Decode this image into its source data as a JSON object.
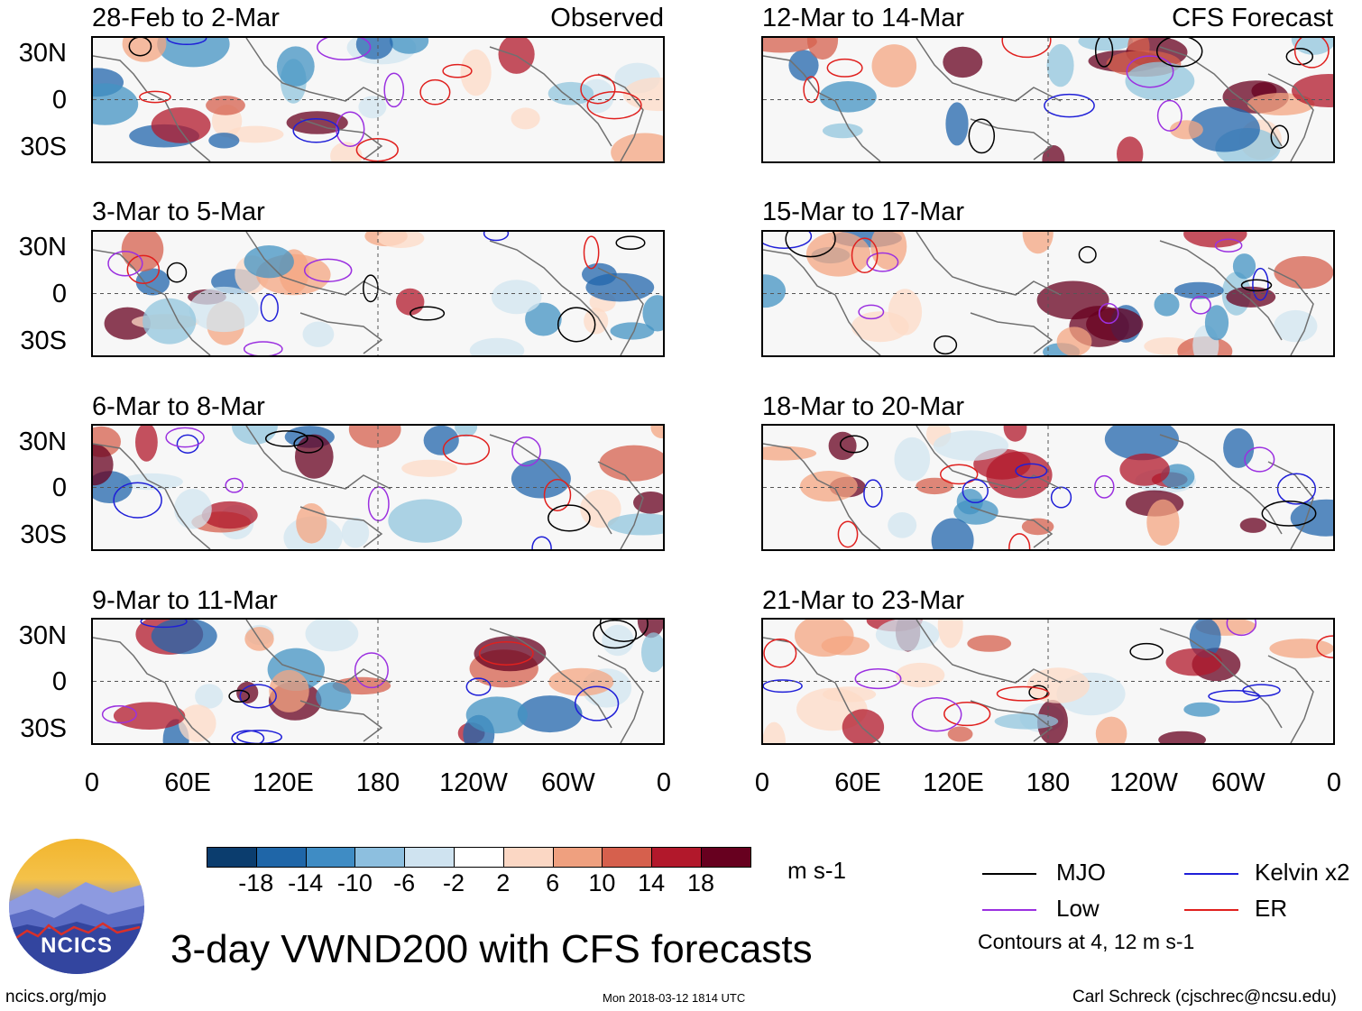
{
  "figure": {
    "title": "3-day VWND200 with CFS forecasts",
    "source_url": "ncics.org/mjo",
    "timestamp": "Mon 2018-03-12 1814 UTC",
    "author": "Carl Schreck (cjschrec@ncsu.edu)",
    "logo_text": "NCICS"
  },
  "columns": {
    "left_tag": "Observed",
    "right_tag": "CFS Forecast"
  },
  "panels": [
    {
      "period": "28-Feb to 2-Mar",
      "column": "observed"
    },
    {
      "period": "3-Mar to 5-Mar",
      "column": "observed"
    },
    {
      "period": "6-Mar to 8-Mar",
      "column": "observed"
    },
    {
      "period": "9-Mar to 11-Mar",
      "column": "observed"
    },
    {
      "period": "12-Mar to 14-Mar",
      "column": "forecast"
    },
    {
      "period": "15-Mar to 17-Mar",
      "column": "forecast"
    },
    {
      "period": "18-Mar to 20-Mar",
      "column": "forecast"
    },
    {
      "period": "21-Mar to 23-Mar",
      "column": "forecast"
    }
  ],
  "axes": {
    "lat_ticks": [
      "30N",
      "0",
      "30S"
    ],
    "lon_ticks": [
      "0",
      "60E",
      "120E",
      "180",
      "120W",
      "60W",
      "0"
    ]
  },
  "colorbar": {
    "unit": "m s-1",
    "ticks": [
      "-18",
      "-14",
      "-10",
      "-6",
      "-2",
      "2",
      "6",
      "10",
      "14",
      "18"
    ],
    "colors": [
      "#0b3d6e",
      "#1f66a8",
      "#3f8cc4",
      "#8dbfdf",
      "#cfe3f0",
      "#ffffff",
      "#fbd7c4",
      "#efa07f",
      "#d6604d",
      "#b2182b",
      "#67001f"
    ]
  },
  "legend": {
    "items": [
      {
        "label": "MJO",
        "color": "#000000"
      },
      {
        "label": "Kelvin x2",
        "color": "#1f1fd8"
      },
      {
        "label": "Low",
        "color": "#9b30e0"
      },
      {
        "label": "ER",
        "color": "#e0201e"
      }
    ],
    "note": "Contours at 4, 12 m s-1"
  }
}
